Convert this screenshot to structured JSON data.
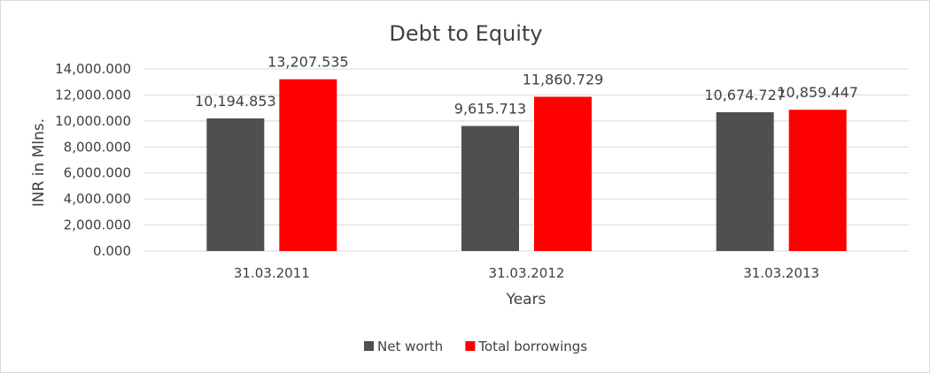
{
  "chart_data": {
    "type": "bar",
    "title": "Debt to Equity",
    "xlabel": "Years",
    "ylabel": "INR in Mlns.",
    "categories": [
      "31.03.2011",
      "31.03.2012",
      "31.03.2013"
    ],
    "series": [
      {
        "name": "Net worth",
        "color": "#4f4f4f",
        "values": [
          10194.853,
          9615.713,
          10674.727
        ],
        "labels": [
          "10,194.853",
          "9,615.713",
          "10,674.727"
        ]
      },
      {
        "name": "Total borrowings",
        "color": "#ff0000",
        "values": [
          13207.535,
          11860.729,
          10859.447
        ],
        "labels": [
          "13,207.535",
          "11,860.729",
          "10,859.447"
        ]
      }
    ],
    "ylim": [
      0,
      14000
    ],
    "yticks": [
      0,
      2000,
      4000,
      6000,
      8000,
      10000,
      12000,
      14000
    ],
    "ytick_labels": [
      "0.000",
      "2,000.000",
      "4,000.000",
      "6,000.000",
      "8,000.000",
      "10,000.000",
      "12,000.000",
      "14,000.000"
    ],
    "grid": true,
    "legend_position": "bottom"
  }
}
